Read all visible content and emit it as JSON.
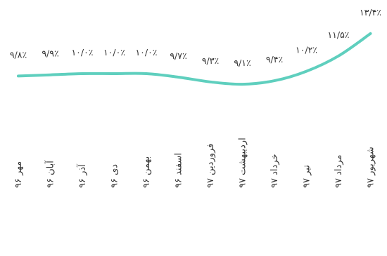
{
  "chart_data": {
    "type": "line",
    "title": "",
    "xlabel": "",
    "ylabel": "",
    "grid": false,
    "legend": "none",
    "color": "#5fcfbe",
    "categories": [
      "مهر ۹۶",
      "آبان ۹۶",
      "آذر ۹۶",
      "دی ۹۶",
      "بهمن ۹۶",
      "اسفند ۹۶",
      "فروردین ۹۷",
      "اردیبهشت ۹۷",
      "خرداد ۹۷",
      "تیر ۹۷",
      "مرداد ۹۷",
      "شهریور ۹۷"
    ],
    "values": [
      9.8,
      9.9,
      10.0,
      10.0,
      10.0,
      9.7,
      9.3,
      9.1,
      9.4,
      10.2,
      11.5,
      13.4
    ],
    "data_labels": [
      "۹/۸٪",
      "۹/۹٪",
      "۱۰/۰٪",
      "۱۰/۰٪",
      "۱۰/۰٪",
      "۹/۷٪",
      "۹/۳٪",
      "۹/۱٪",
      "۹/۴٪",
      "۱۰/۲٪",
      "۱۱/۵٪",
      "۱۳/۴٪"
    ]
  }
}
